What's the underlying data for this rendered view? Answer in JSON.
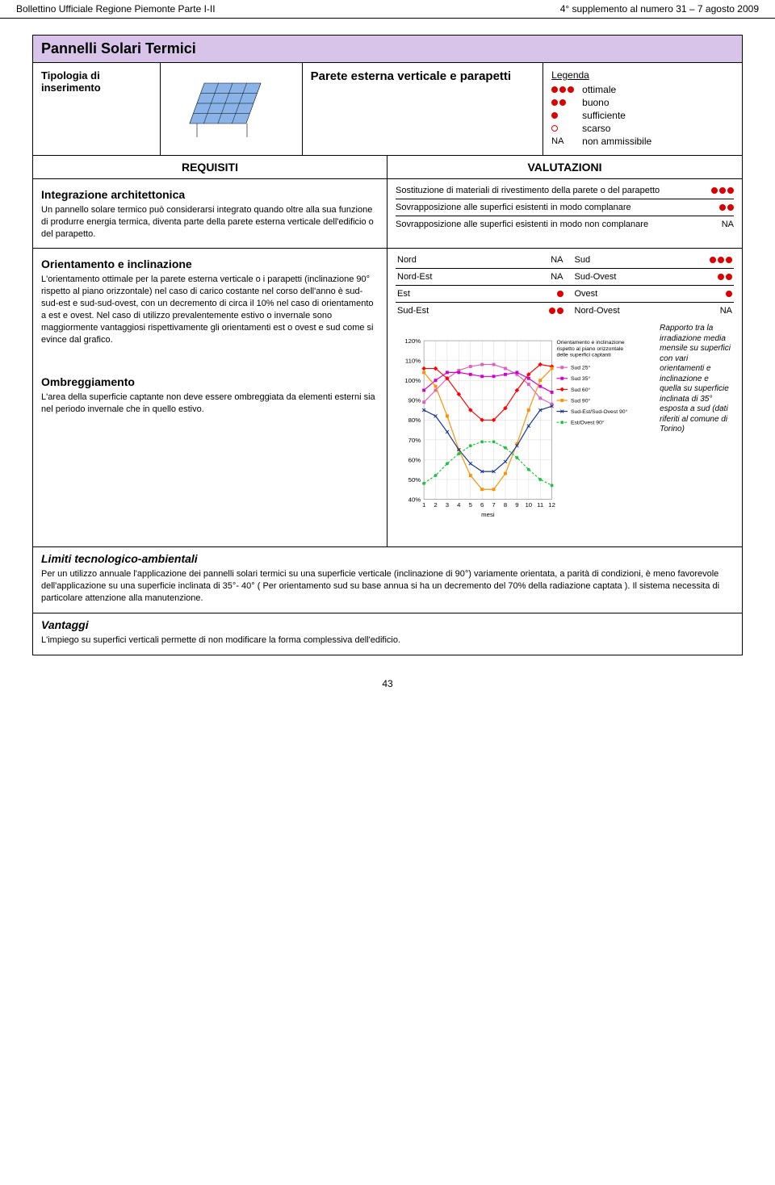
{
  "header": {
    "left": "Bollettino Ufficiale Regione Piemonte Parte I-II",
    "right": "4° supplemento al numero 31 – 7 agosto 2009"
  },
  "title": "Pannelli Solari Termici",
  "typology_label": "Tipologia di inserimento",
  "surface_title": "Parete esterna verticale e parapetti",
  "legend": {
    "title": "Legenda",
    "items": [
      {
        "dots": 3,
        "label": "ottimale"
      },
      {
        "dots": 2,
        "label": "buono"
      },
      {
        "dots": 1,
        "label": "sufficiente"
      },
      {
        "open": true,
        "label": "scarso"
      },
      {
        "na": "NA",
        "label": "non ammissibile"
      }
    ]
  },
  "sections": {
    "requisiti": "REQUISITI",
    "valutazioni": "VALUTAZIONI"
  },
  "integrazione": {
    "title": "Integrazione architettonica",
    "body": "Un pannello solare termico può considerarsi integrato quando oltre alla sua funzione di produrre energia termica, diventa parte della parete esterna verticale dell'edificio o del parapetto.",
    "valutazioni": [
      {
        "label": "Sostituzione di materiali di rivestimento della parete o del parapetto",
        "dots": 3
      },
      {
        "label": "Sovrapposizione alle superfici esistenti in modo complanare",
        "dots": 2
      },
      {
        "label": "Sovrapposizione alle superfici esistenti in modo non complanare",
        "na": "NA"
      }
    ]
  },
  "orientamento": {
    "title": "Orientamento e inclinazione",
    "body": "L'orientamento ottimale per la parete esterna verticale o i parapetti (inclinazione 90° rispetto al piano orizzontale) nel caso di carico costante nel corso dell'anno è sud-sud-est e sud-sud-ovest, con un decremento di circa il 10% nel caso di orientamento a est e ovest. Nel caso di utilizzo prevalentemente estivo o invernale sono maggiormente vantaggiosi rispettivamente gli orientamenti est o ovest e sud come si evince dal grafico.",
    "rows": [
      {
        "l": "Nord",
        "lna": "NA",
        "r": "Sud",
        "rdots": 3
      },
      {
        "l": "Nord-Est",
        "lna": "NA",
        "r": "Sud-Ovest",
        "rdots": 2
      },
      {
        "l": "Est",
        "ldots": 1,
        "r": "Ovest",
        "rdots": 1
      },
      {
        "l": "Sud-Est",
        "ldots": 2,
        "r": "Nord-Ovest",
        "rna": "NA"
      }
    ]
  },
  "ombreggiamento": {
    "title": "Ombreggiamento",
    "body": "L'area della superficie captante non deve essere ombreggiata da elementi esterni sia nel periodo invernale che in quello estivo."
  },
  "chart": {
    "title": "Orientamento e inclinazione rispetto al piano orizzontale delle superfici captanti",
    "xlabel": "mesi",
    "ylim": [
      40,
      120
    ],
    "ytick_step": 10,
    "yticks": [
      "40%",
      "50%",
      "60%",
      "70%",
      "80%",
      "90%",
      "100%",
      "110%",
      "120%"
    ],
    "xticks": [
      "1",
      "2",
      "3",
      "4",
      "5",
      "6",
      "7",
      "8",
      "9",
      "10",
      "11",
      "12"
    ],
    "background": "#ffffff",
    "grid_color": "#d8d8d8",
    "series": [
      {
        "name": "Sud 25°",
        "color": "#e060c0",
        "marker": "square",
        "values": [
          89,
          95,
          101,
          105,
          107,
          108,
          108,
          106,
          103,
          98,
          91,
          88
        ]
      },
      {
        "name": "Sud 35°",
        "color": "#d000d0",
        "marker": "square",
        "values": [
          95,
          100,
          104,
          104,
          103,
          102,
          102,
          103,
          104,
          101,
          97,
          94
        ]
      },
      {
        "name": "Sud 60°",
        "color": "#ff0000",
        "marker": "diamond",
        "values": [
          106,
          106,
          101,
          93,
          85,
          80,
          80,
          86,
          95,
          103,
          108,
          107
        ]
      },
      {
        "name": "Sud 90°",
        "color": "#ff9000",
        "marker": "square",
        "values": [
          104,
          97,
          82,
          65,
          52,
          45,
          45,
          53,
          68,
          85,
          100,
          106
        ]
      },
      {
        "name": "Sud-Est/Sud-Ovest 90°",
        "color": "#103090",
        "marker": "x",
        "values": [
          85,
          82,
          74,
          65,
          58,
          54,
          54,
          59,
          67,
          77,
          85,
          87
        ]
      },
      {
        "name": "Est/Ovest 90°",
        "color": "#20c040",
        "marker": "circle",
        "dashed": true,
        "values": [
          48,
          52,
          58,
          63,
          67,
          69,
          69,
          66,
          61,
          55,
          50,
          47
        ]
      }
    ],
    "caption": "Rapporto tra la irradiazione media mensile su superfici con vari orientamenti e inclinazione e quella su superficie inclinata di 35° esposta a sud (dati riferiti al comune di Torino)"
  },
  "limiti": {
    "title": "Limiti tecnologico-ambientali",
    "body": "Per un utilizzo annuale l'applicazione dei pannelli solari termici su una superficie verticale (inclinazione di 90°) variamente orientata, a parità di condizioni, è meno favorevole dell'applicazione su una superficie inclinata di 35°- 40° ( Per orientamento sud su base annua si ha un decremento del 70% della radiazione captata ). Il sistema necessita di particolare attenzione alla manutenzione."
  },
  "vantaggi": {
    "title": "Vantaggi",
    "body": "L'impiego su superfici verticali permette di non modificare la forma complessiva dell'edificio."
  },
  "page_number": "43",
  "colors": {
    "title_bg": "#d8c4e8",
    "dot": "#d00000"
  }
}
